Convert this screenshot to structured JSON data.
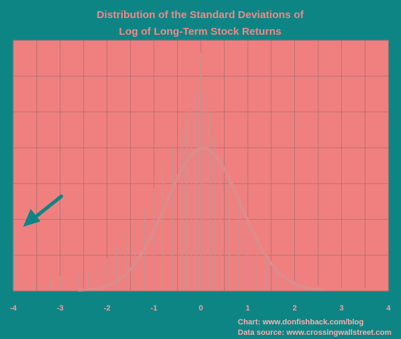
{
  "chart_data": {
    "type": "bar",
    "title": [
      "Distribution of the Standard Deviations of",
      "Log of Long-Term Stock Returns"
    ],
    "xlabel": "",
    "ylabel": "",
    "xlim": [
      -4,
      4
    ],
    "ylim": [
      0,
      1
    ],
    "x_ticks": [
      "-4",
      "-3",
      "-2",
      "-1",
      "0",
      "1",
      "2",
      "3",
      "4"
    ],
    "grid": true,
    "legend": "none",
    "credits": [
      "Chart: www.donfishback.com/blog",
      "Data source: www.crossingwallstreet.com"
    ],
    "annotation": {
      "type": "arrow",
      "points_to_x": -3.95
    },
    "series": [
      {
        "kind": "histogram",
        "bin_width": 0.02,
        "x": [
          -3.98,
          -3.8,
          -3.6,
          -3.4,
          -3.2,
          -3.0,
          -2.8,
          -2.6,
          -2.4,
          -2.2,
          -2.0,
          -1.8,
          -1.6,
          -1.4,
          -1.2,
          -1.0,
          -0.8,
          -0.6,
          -0.4,
          -0.3,
          -0.2,
          -0.1,
          0.0,
          0.05,
          0.1,
          0.2,
          0.3,
          0.4,
          0.6,
          0.8,
          1.0,
          1.2,
          1.4,
          1.6,
          1.8,
          2.0,
          2.2,
          2.5,
          3.0,
          3.5
        ],
        "values": [
          0.21,
          0.02,
          0.03,
          0.03,
          0.05,
          0.06,
          0.06,
          0.07,
          0.08,
          0.1,
          0.13,
          0.18,
          0.22,
          0.28,
          0.33,
          0.41,
          0.5,
          0.57,
          0.63,
          0.7,
          0.74,
          0.8,
          0.95,
          0.78,
          0.82,
          0.72,
          0.62,
          0.52,
          0.45,
          0.37,
          0.28,
          0.2,
          0.13,
          0.09,
          0.06,
          0.04,
          0.03,
          0.02,
          0.01,
          0.01
        ]
      },
      {
        "kind": "normal-curve",
        "mean": 0.05,
        "sd": 0.8,
        "peak": 0.57
      }
    ],
    "colors": {
      "background": "#0e8585",
      "plot_area": "#f08080",
      "bars": "#c99090",
      "curve": "#dd8c8c",
      "grid": "#b87070",
      "arrow": "#0e8585",
      "title": "#f08888"
    }
  }
}
